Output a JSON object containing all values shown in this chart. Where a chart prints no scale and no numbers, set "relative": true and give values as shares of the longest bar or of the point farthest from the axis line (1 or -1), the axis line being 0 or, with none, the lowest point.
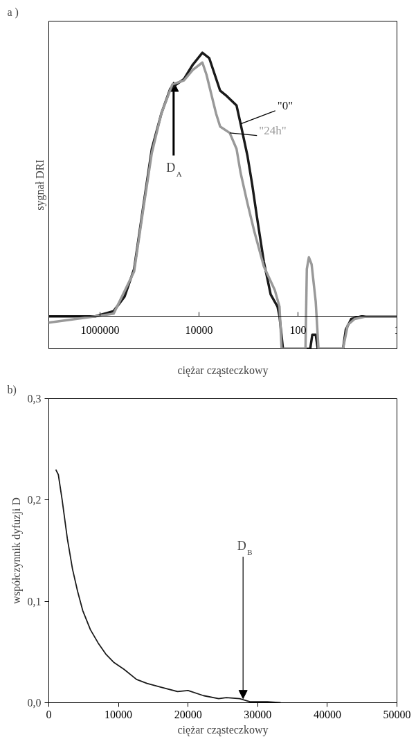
{
  "chart_data": [
    {
      "type": "line",
      "title": "a )",
      "xlabel": "ciężar cząsteczkowy",
      "ylabel": "sygnał DRI",
      "relative": true,
      "log": "x",
      "xlim": [
        10800000,
        1
      ],
      "xticks": [
        1000000,
        10000,
        100,
        1
      ],
      "tick_labels": "x",
      "annotations": [
        {
          "text": "D$_{A}$",
          "x": 32500,
          "y": 0.89
        }
      ],
      "series": [
        {
          "name": "\"0\"",
          "color": "#1a1a1a",
          "x": [
            10800000,
            1250000,
            530000,
            318000,
            204000,
            135000,
            89500,
            57400,
            37900,
            20100,
            13300,
            8530,
            6210,
            3730,
            2720,
            1740,
            1440,
            1050,
            840,
            673,
            490,
            356,
            259,
            236,
            201,
            56.5,
            51.3,
            43.8,
            39.8,
            12.3,
            10.8,
            8.4,
            5.21,
            1
          ],
          "values": [
            0,
            0,
            0.02,
            0.075,
            0.18,
            0.41,
            0.635,
            0.77,
            0.864,
            0.9,
            0.955,
            1,
            0.98,
            0.856,
            0.835,
            0.8,
            0.73,
            0.61,
            0.5,
            0.376,
            0.208,
            0.083,
            0.037,
            0,
            -0.123,
            -0.123,
            -0.07,
            -0.07,
            -0.123,
            -0.123,
            -0.05,
            -0.01,
            0,
            0
          ]
        },
        {
          "name": "\"24h\"",
          "color": "#999999",
          "x": [
            10800000,
            1250000,
            530000,
            204000,
            135000,
            89500,
            57400,
            34500,
            20100,
            13300,
            8530,
            7050,
            4520,
            3730,
            2390,
            1740,
            1440,
            1050,
            764,
            490,
            294,
            236,
            214,
            70.5,
            66.2,
            60.2,
            53,
            43.8,
            38.5,
            12.3,
            9.84,
            7.16,
            4.18,
            1
          ],
          "values": [
            -0.024,
            0,
            0.01,
            0.17,
            0.4,
            0.62,
            0.77,
            0.88,
            0.895,
            0.935,
            0.963,
            0.917,
            0.77,
            0.72,
            0.696,
            0.635,
            0.544,
            0.43,
            0.323,
            0.19,
            0.1,
            0.037,
            -0.123,
            -0.123,
            0.18,
            0.224,
            0.197,
            0.056,
            -0.123,
            -0.123,
            -0.032,
            -0.01,
            0,
            0
          ]
        }
      ]
    },
    {
      "type": "line",
      "title": "b)",
      "xlabel": "ciężar cząsteczkowy",
      "ylabel": "współczynnik dyfuzji D",
      "xlim": [
        0,
        50000
      ],
      "ylim": [
        0,
        0.3
      ],
      "xticks": [
        0,
        10000,
        20000,
        30000,
        40000,
        50000
      ],
      "yticks": [
        {
          "value": 0,
          "label": "0,0"
        },
        {
          "value": 0.1,
          "label": "0,1"
        },
        {
          "value": 0.2,
          "label": "0,2"
        },
        {
          "value": 0.3,
          "label": "0,3"
        }
      ],
      "annotations": [
        {
          "text": "D$_{B}$",
          "x": 27900,
          "y": 0.004
        }
      ],
      "series": [
        {
          "color": "#1a1a1a",
          "x": [
            1000,
            1370,
            1920,
            2660,
            3400,
            4130,
            4870,
            5980,
            7080,
            8190,
            9300,
            10800,
            12600,
            14100,
            16300,
            18500,
            20000,
            22200,
            24400,
            25500,
            27400,
            28900,
            31400,
            33300
          ],
          "values": [
            0.23,
            0.225,
            0.2,
            0.162,
            0.132,
            0.11,
            0.091,
            0.072,
            0.059,
            0.048,
            0.04,
            0.033,
            0.023,
            0.019,
            0.015,
            0.011,
            0.012,
            0.007,
            0.004,
            0.005,
            0.004,
            0.001,
            0.001,
            0.0
          ]
        }
      ]
    }
  ]
}
